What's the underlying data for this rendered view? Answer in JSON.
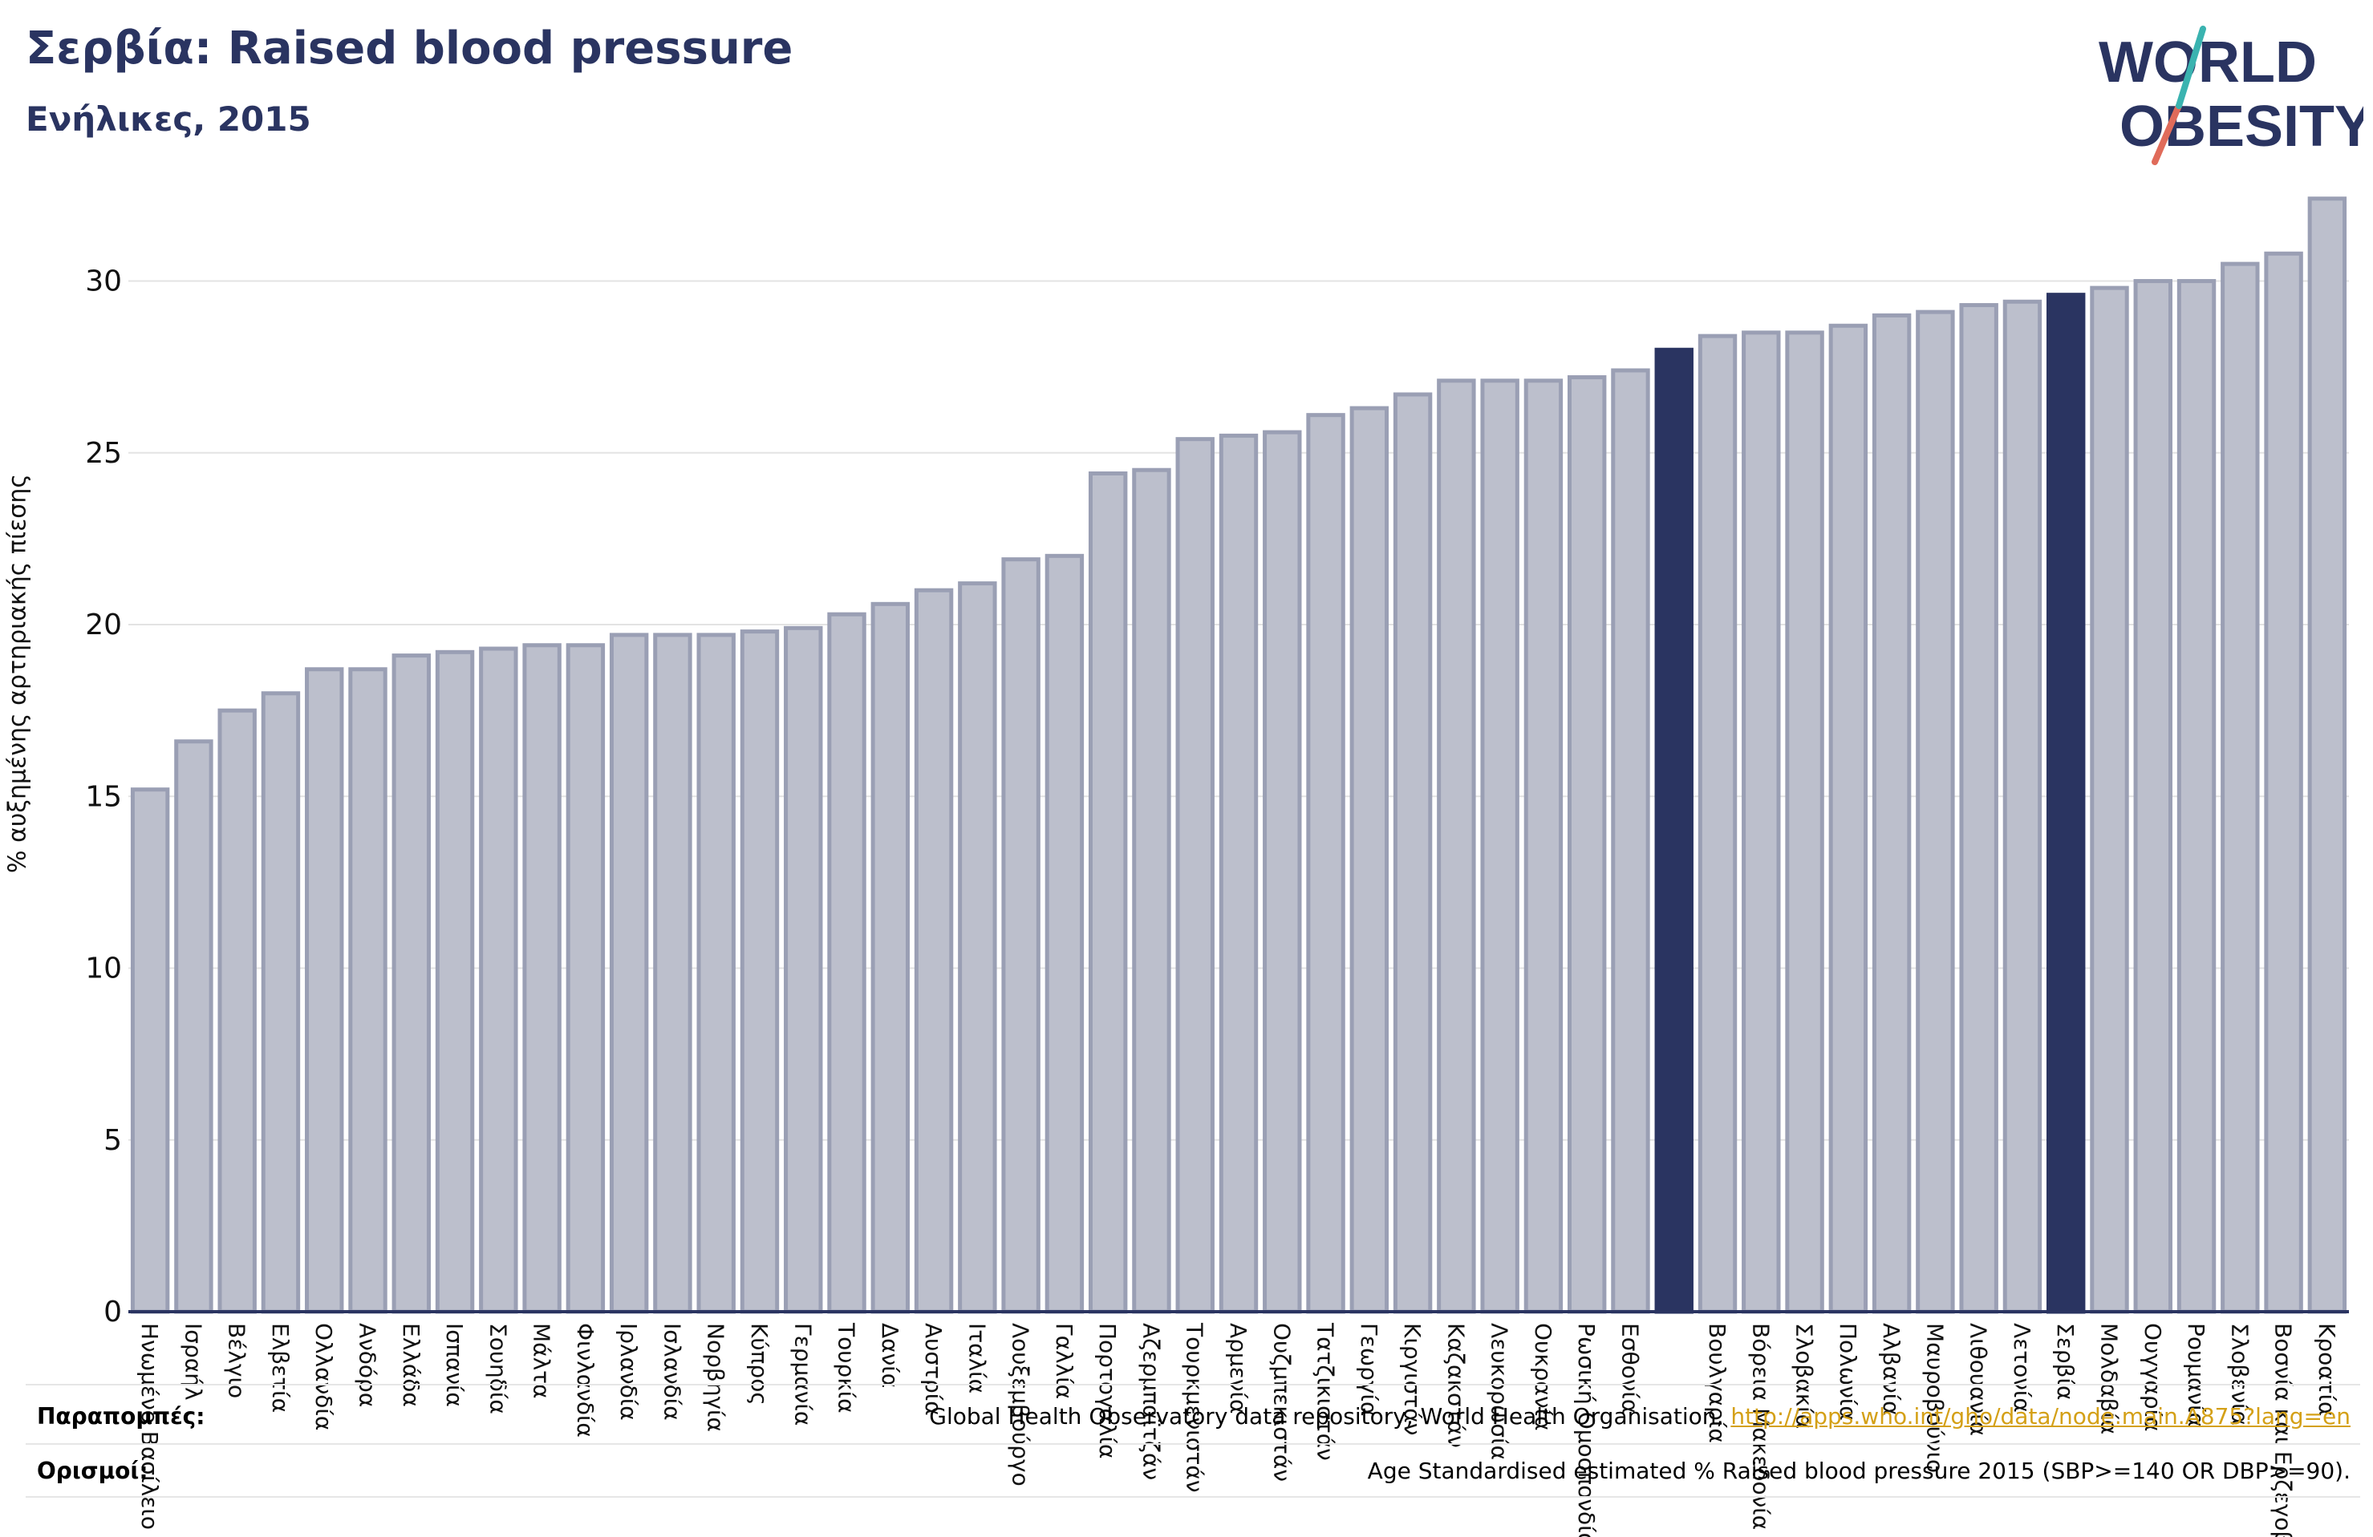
{
  "header": {
    "title": "Σερβία: Raised blood pressure",
    "subtitle": "Ενήλικες, 2015"
  },
  "logo": {
    "line1": "WORLD",
    "line2": "OBESITY"
  },
  "footer": {
    "references_label": "Παραπομπές:",
    "references_text": "Global Health Observatory data repository, World Health Organisation, ",
    "references_link": "http://apps.who.int/gho/data/node.main.A875?lang=en",
    "definitions_label": "Ορισμοί:",
    "definitions_text": "Age Standardised estimated % Raised blood pressure 2015 (SBP>=140 OR DBP>=90)."
  },
  "colors": {
    "bar_default": "#bcbfcc",
    "bar_border": "#9a9fb4",
    "bar_highlight": "#2a3461",
    "title": "#2a3461"
  },
  "chart_data": {
    "type": "bar",
    "title": "Σερβία: Raised blood pressure",
    "subtitle": "Ενήλικες, 2015",
    "ylabel": "% αυξημένης αρτηριακής πίεσης",
    "xlabel": "",
    "ylim": [
      0,
      33
    ],
    "yticks": [
      0,
      5,
      10,
      15,
      20,
      25,
      30
    ],
    "grid": true,
    "categories": [
      "Ηνωμένο Βασίλειο",
      "Ισραήλ",
      "Βέλγιο",
      "Ελβετία",
      "Ολλανδία",
      "Ανδόρα",
      "Ελλάδα",
      "Ισπανία",
      "Σουηδία",
      "Μάλτα",
      "Φινλανδία",
      "Ιρλανδία",
      "Ισλανδία",
      "Νορβηγία",
      "Κύπρος",
      "Γερμανία",
      "Τουρκία",
      "Δανία",
      "Αυστρία",
      "Ιταλία",
      "Λουξεμβούργο",
      "Γαλλία",
      "Πορτογαλία",
      "Αζερμπαϊτζάν",
      "Τουρκμενιστάν",
      "Αρμενία",
      "Ουζμπεκιστάν",
      "Τατζικιστάν",
      "Γεωργία",
      "Κιργιστάν",
      "Καζακστάν",
      "Λευκορωσία",
      "Ουκρανία",
      "Ρωσική Ομοσπονδία",
      "Εσθονία",
      "",
      "Βουλγαρία",
      "Βόρεια Μακεδονία",
      "Σλοβακία",
      "Πολωνία",
      "Αλβανία",
      "Μαυροβούνιο",
      "Λιθουανία",
      "Λετονία",
      "Σερβία",
      "Μολδαβία",
      "Ουγγαρία",
      "Ρουμανία",
      "Σλοβενία",
      "Βοσνία και Ερζεγοβίνη",
      "Κροατία"
    ],
    "values": [
      15.2,
      16.6,
      17.5,
      18.0,
      18.7,
      18.7,
      19.1,
      19.2,
      19.3,
      19.4,
      19.4,
      19.7,
      19.7,
      19.7,
      19.8,
      19.9,
      20.3,
      20.6,
      21.0,
      21.2,
      21.9,
      22.0,
      24.4,
      24.5,
      25.4,
      25.5,
      25.6,
      26.1,
      26.3,
      26.7,
      27.1,
      27.1,
      27.1,
      27.2,
      27.4,
      28.0,
      28.4,
      28.5,
      28.5,
      28.7,
      29.0,
      29.1,
      29.3,
      29.4,
      29.6,
      29.8,
      30.0,
      30.0,
      30.5,
      30.8,
      32.4
    ],
    "highlighted": [
      "",
      "Σερβία"
    ]
  }
}
